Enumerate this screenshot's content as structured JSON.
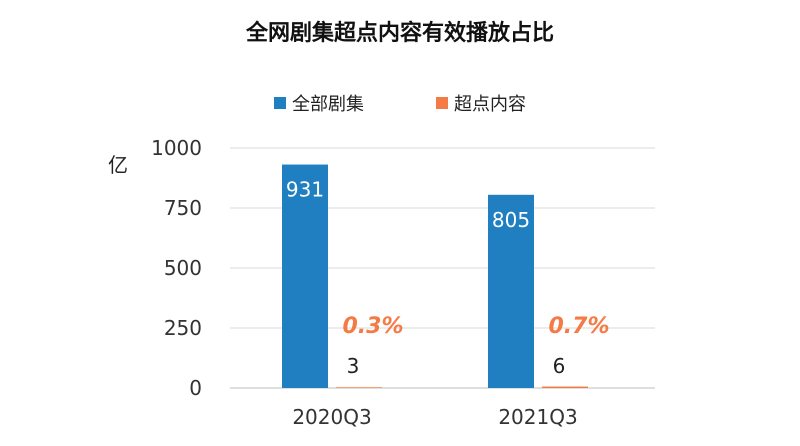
{
  "chart_data": {
    "type": "bar",
    "title": "全网剧集超点内容有效播放占比",
    "ylabel": "亿",
    "ylim": [
      0,
      1000
    ],
    "yticks": [
      0,
      250,
      500,
      750,
      1000
    ],
    "grid": true,
    "legend_position": "top",
    "categories": [
      "2020Q3",
      "2021Q3"
    ],
    "series": [
      {
        "name": "全部剧集",
        "values": [
          931,
          805
        ],
        "color": "#1f7fc1"
      },
      {
        "name": "超点内容",
        "values": [
          3,
          6
        ],
        "color": "#f47b45"
      }
    ],
    "annotations": [
      "0.3%",
      "0.7%"
    ]
  }
}
